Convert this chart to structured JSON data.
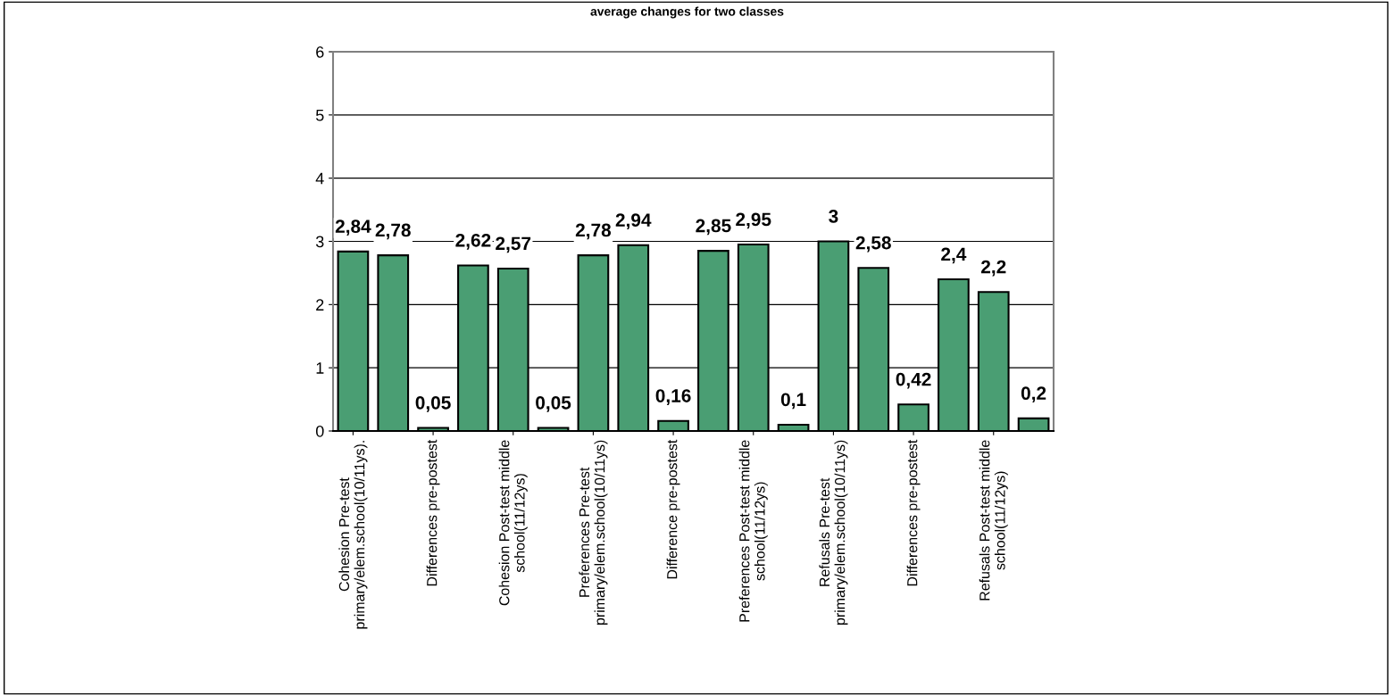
{
  "chart_data": {
    "type": "bar",
    "title": "average changes for two classes",
    "categories": [
      "Cohesion Pre-test\nprimary/elem.school(10/11ys).",
      null,
      "Differences pre-postest",
      null,
      "Cohesion Post-test middle\nschool(11/12ys)",
      null,
      "Preferences Pre-test\nprimary/elem.school(10/11ys)",
      null,
      "Difference pre-postest",
      null,
      "Preferences Post-test middle\nschool(11/12ys)",
      null,
      "Refusals Pre-test\nprimary/elem.school(10/11ys)",
      null,
      "Differences pre-postest",
      null,
      "Refusals Post-test middle\nschool(11/12ys)",
      null
    ],
    "values": [
      2.84,
      2.78,
      0.05,
      2.62,
      2.57,
      0.05,
      2.78,
      2.94,
      0.16,
      2.85,
      2.95,
      0.1,
      3,
      2.58,
      0.42,
      2.4,
      2.2,
      0.2
    ],
    "value_labels": [
      "2,84",
      "2,78",
      "0,05",
      "2,62",
      "2,57",
      "0,05",
      "2,78",
      "2,94",
      "0,16",
      "2,85",
      "2,95",
      "0,1",
      "3",
      "2,58",
      "0,42",
      "2,4",
      "2,2",
      "0,2"
    ],
    "color": "#4a9e73",
    "ylim": [
      0,
      6
    ],
    "yticks": [
      0,
      1,
      2,
      3,
      4,
      5,
      6
    ],
    "grid": "y"
  }
}
